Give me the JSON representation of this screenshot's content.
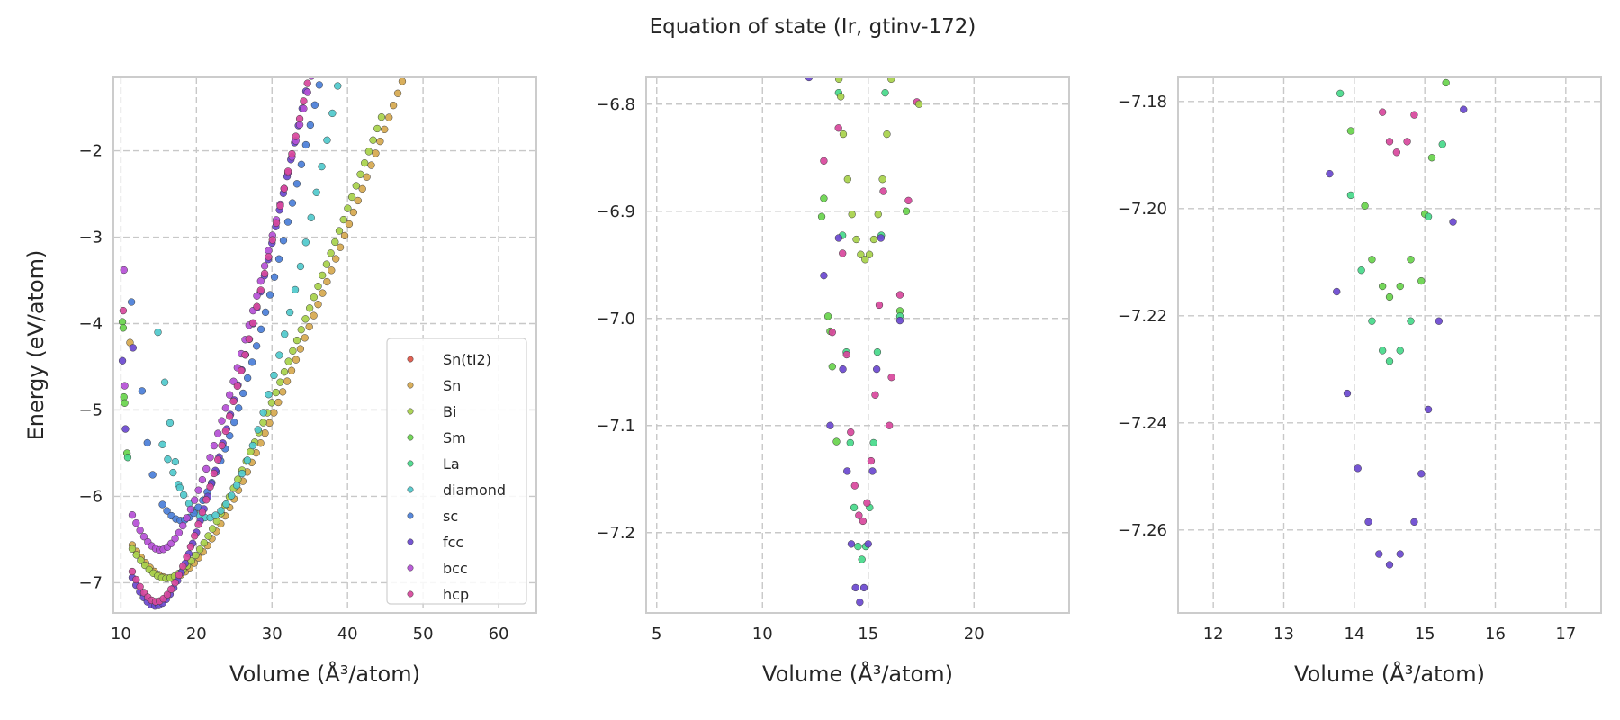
{
  "chart_data": {
    "type": "scatter",
    "title": "Equation of state (Ir, gtinv-172)",
    "colors": {
      "Sn(tI2)": "#e05545",
      "Sn": "#d6a84e",
      "Bi": "#a7d14a",
      "Sm": "#68d44c",
      "La": "#46d98a",
      "diamond": "#4fc9cc",
      "sc": "#4a7ed8",
      "fcc": "#6a48cf",
      "bcc": "#b54fd6",
      "hcp": "#d8479c"
    },
    "legend": [
      "Sn(tI2)",
      "Sn",
      "Bi",
      "Sm",
      "La",
      "diamond",
      "sc",
      "fcc",
      "bcc",
      "hcp"
    ],
    "legend_position": "lower-right",
    "grid": true,
    "panels": [
      {
        "xlabel": "Volume (Å³/atom)",
        "ylabel": "Energy (eV/atom)",
        "xlim": [
          9,
          65
        ],
        "ylim": [
          -7.35,
          -1.15
        ],
        "xticks": [
          10,
          20,
          30,
          40,
          50,
          60
        ],
        "yticks": [
          -7,
          -6,
          -5,
          -4,
          -3,
          -2
        ],
        "curves": [
          {
            "name": "Sn",
            "E0": -6.95,
            "V0": 16.5,
            "B": 0.022,
            "k": 0.085,
            "vmin": 11.5,
            "vmax": 49,
            "n": 65
          },
          {
            "name": "Bi",
            "E0": -6.95,
            "V0": 16.0,
            "B": 0.024,
            "k": 0.093,
            "vmin": 11.5,
            "vmax": 44.5,
            "n": 60
          },
          {
            "name": "diamond",
            "E0": -6.25,
            "V0": 21.5,
            "B": 0.03,
            "k": 0.045,
            "vmin": 15.5,
            "vmax": 64,
            "n": 70
          },
          {
            "name": "sc",
            "E0": -6.28,
            "V0": 18.0,
            "B": 0.035,
            "k": 0.072,
            "vmin": 15.5,
            "vmax": 50.5,
            "n": 60
          },
          {
            "name": "fcc",
            "E0": -7.27,
            "V0": 14.6,
            "B": 0.045,
            "k": 0.1,
            "vmin": 11.5,
            "vmax": 43.5,
            "n": 65
          },
          {
            "name": "bcc",
            "E0": -6.62,
            "V0": 15.2,
            "B": 0.04,
            "k": 0.096,
            "vmin": 11.5,
            "vmax": 44.5,
            "n": 65
          },
          {
            "name": "hcp",
            "E0": -7.22,
            "V0": 14.7,
            "B": 0.045,
            "k": 0.1,
            "vmin": 11.5,
            "vmax": 44.5,
            "n": 65
          }
        ],
        "points": [
          {
            "s": "bcc",
            "x": 10.4,
            "y": -3.38
          },
          {
            "s": "hcp",
            "x": 10.3,
            "y": -3.85
          },
          {
            "s": "Sm",
            "x": 10.2,
            "y": -3.98
          },
          {
            "s": "Sm",
            "x": 10.3,
            "y": -4.05
          },
          {
            "s": "fcc",
            "x": 10.2,
            "y": -4.43
          },
          {
            "s": "bcc",
            "x": 10.5,
            "y": -4.72
          },
          {
            "s": "Sm",
            "x": 10.4,
            "y": -4.85
          },
          {
            "s": "Sm",
            "x": 10.5,
            "y": -4.92
          },
          {
            "s": "fcc",
            "x": 10.6,
            "y": -5.22
          },
          {
            "s": "Sm",
            "x": 10.8,
            "y": -5.5
          },
          {
            "s": "La",
            "x": 10.9,
            "y": -5.55
          },
          {
            "s": "sc",
            "x": 11.4,
            "y": -3.75
          },
          {
            "s": "Sn",
            "x": 11.2,
            "y": -4.22
          },
          {
            "s": "fcc",
            "x": 11.6,
            "y": -4.28
          },
          {
            "s": "sc",
            "x": 12.8,
            "y": -4.78
          },
          {
            "s": "diamond",
            "x": 14.9,
            "y": -4.1
          },
          {
            "s": "diamond",
            "x": 15.8,
            "y": -4.68
          },
          {
            "s": "diamond",
            "x": 16.5,
            "y": -5.15
          },
          {
            "s": "diamond",
            "x": 17.2,
            "y": -5.6
          },
          {
            "s": "diamond",
            "x": 17.8,
            "y": -5.9
          },
          {
            "s": "sc",
            "x": 13.5,
            "y": -5.38
          },
          {
            "s": "sc",
            "x": 14.2,
            "y": -5.75
          }
        ]
      },
      {
        "xlabel": "Volume (Å³/atom)",
        "xlim": [
          4.5,
          24.5
        ],
        "ylim": [
          -7.275,
          -6.775
        ],
        "xticks": [
          5,
          10,
          15,
          20
        ],
        "yticks": [
          -7.2,
          -7.1,
          -7.0,
          -6.9,
          -6.8
        ],
        "curves": [
          {
            "name": "Bi",
            "E0": -6.945,
            "V0": 14.85,
            "B": 0.11,
            "k": 0,
            "vmin": 13.2,
            "vmax": 16.5,
            "n": 17
          },
          {
            "name": "La",
            "E0": -7.225,
            "V0": 14.7,
            "B": 0.36,
            "k": 0,
            "vmin": 13.6,
            "vmax": 15.8,
            "n": 13
          },
          {
            "name": "hcp",
            "E0": -7.19,
            "V0": 14.7,
            "B": 0.3,
            "k": 0,
            "vmin": 13.4,
            "vmax": 16.1,
            "n": 15
          },
          {
            "name": "fcc",
            "E0": -7.265,
            "V0": 14.6,
            "B": 0.34,
            "k": 0,
            "vmin": 13.6,
            "vmax": 15.6,
            "n": 11
          }
        ],
        "points": [
          {
            "s": "fcc",
            "x": 12.2,
            "y": -6.775
          },
          {
            "s": "Bi",
            "x": 13.7,
            "y": -6.793
          },
          {
            "s": "hcp",
            "x": 17.3,
            "y": -6.798
          },
          {
            "s": "Bi",
            "x": 17.4,
            "y": -6.8
          },
          {
            "s": "hcp",
            "x": 12.9,
            "y": -6.853
          },
          {
            "s": "Sm",
            "x": 12.9,
            "y": -6.888
          },
          {
            "s": "Sm",
            "x": 12.8,
            "y": -6.905
          },
          {
            "s": "hcp",
            "x": 16.9,
            "y": -6.89
          },
          {
            "s": "Sm",
            "x": 16.8,
            "y": -6.9
          },
          {
            "s": "fcc",
            "x": 12.9,
            "y": -6.96
          },
          {
            "s": "Sm",
            "x": 13.1,
            "y": -6.998
          },
          {
            "s": "Sm",
            "x": 13.2,
            "y": -7.012
          },
          {
            "s": "hcp",
            "x": 13.3,
            "y": -7.013
          },
          {
            "s": "hcp",
            "x": 16.5,
            "y": -6.978
          },
          {
            "s": "Sm",
            "x": 16.5,
            "y": -6.993
          },
          {
            "s": "La",
            "x": 16.5,
            "y": -6.998
          },
          {
            "s": "fcc",
            "x": 16.5,
            "y": -7.002
          },
          {
            "s": "Sm",
            "x": 13.3,
            "y": -7.045
          },
          {
            "s": "hcp",
            "x": 16.1,
            "y": -7.055
          },
          {
            "s": "fcc",
            "x": 13.2,
            "y": -7.1
          },
          {
            "s": "Sm",
            "x": 13.5,
            "y": -7.115
          },
          {
            "s": "hcp",
            "x": 16.0,
            "y": -7.1
          }
        ]
      },
      {
        "xlabel": "Volume (Å³/atom)",
        "xlim": [
          11.5,
          17.5
        ],
        "ylim": [
          -7.2755,
          -7.1755
        ],
        "xticks": [
          12,
          13,
          14,
          15,
          16,
          17
        ],
        "yticks": [
          -7.26,
          -7.24,
          -7.22,
          -7.2,
          -7.18
        ],
        "curves": [],
        "points": [
          {
            "s": "La",
            "x": 13.8,
            "y": -7.1785
          },
          {
            "s": "hcp",
            "x": 14.4,
            "y": -7.182
          },
          {
            "s": "hcp",
            "x": 14.85,
            "y": -7.1825
          },
          {
            "s": "Sm",
            "x": 15.3,
            "y": -7.1765
          },
          {
            "s": "fcc",
            "x": 15.55,
            "y": -7.1815
          },
          {
            "s": "hcp",
            "x": 14.5,
            "y": -7.1875
          },
          {
            "s": "hcp",
            "x": 14.75,
            "y": -7.1875
          },
          {
            "s": "hcp",
            "x": 14.6,
            "y": -7.1895
          },
          {
            "s": "La",
            "x": 15.25,
            "y": -7.188
          },
          {
            "s": "Sm",
            "x": 15.1,
            "y": -7.1905
          },
          {
            "s": "Sm",
            "x": 13.95,
            "y": -7.1855
          },
          {
            "s": "fcc",
            "x": 13.65,
            "y": -7.1935
          },
          {
            "s": "La",
            "x": 13.95,
            "y": -7.1975
          },
          {
            "s": "Sm",
            "x": 14.15,
            "y": -7.1995
          },
          {
            "s": "Sm",
            "x": 15.0,
            "y": -7.201
          },
          {
            "s": "La",
            "x": 15.05,
            "y": -7.2015
          },
          {
            "s": "fcc",
            "x": 15.4,
            "y": -7.2025
          },
          {
            "s": "La",
            "x": 14.1,
            "y": -7.2115
          },
          {
            "s": "Sm",
            "x": 14.25,
            "y": -7.2095
          },
          {
            "s": "Sm",
            "x": 14.8,
            "y": -7.2095
          },
          {
            "s": "Sm",
            "x": 14.95,
            "y": -7.2135
          },
          {
            "s": "Sm",
            "x": 14.4,
            "y": -7.2145
          },
          {
            "s": "Sm",
            "x": 14.65,
            "y": -7.2145
          },
          {
            "s": "Sm",
            "x": 14.5,
            "y": -7.2165
          },
          {
            "s": "fcc",
            "x": 13.75,
            "y": -7.2155
          },
          {
            "s": "La",
            "x": 14.25,
            "y": -7.221
          },
          {
            "s": "La",
            "x": 14.8,
            "y": -7.221
          },
          {
            "s": "fcc",
            "x": 15.2,
            "y": -7.221
          },
          {
            "s": "La",
            "x": 14.4,
            "y": -7.2265
          },
          {
            "s": "La",
            "x": 14.65,
            "y": -7.2265
          },
          {
            "s": "La",
            "x": 14.5,
            "y": -7.2285
          },
          {
            "s": "fcc",
            "x": 13.9,
            "y": -7.2345
          },
          {
            "s": "fcc",
            "x": 15.05,
            "y": -7.2375
          },
          {
            "s": "fcc",
            "x": 14.05,
            "y": -7.2485
          },
          {
            "s": "fcc",
            "x": 14.95,
            "y": -7.2495
          },
          {
            "s": "fcc",
            "x": 14.2,
            "y": -7.2585
          },
          {
            "s": "fcc",
            "x": 14.85,
            "y": -7.2585
          },
          {
            "s": "fcc",
            "x": 14.35,
            "y": -7.2645
          },
          {
            "s": "fcc",
            "x": 14.65,
            "y": -7.2645
          },
          {
            "s": "fcc",
            "x": 14.5,
            "y": -7.2665
          }
        ]
      }
    ]
  }
}
